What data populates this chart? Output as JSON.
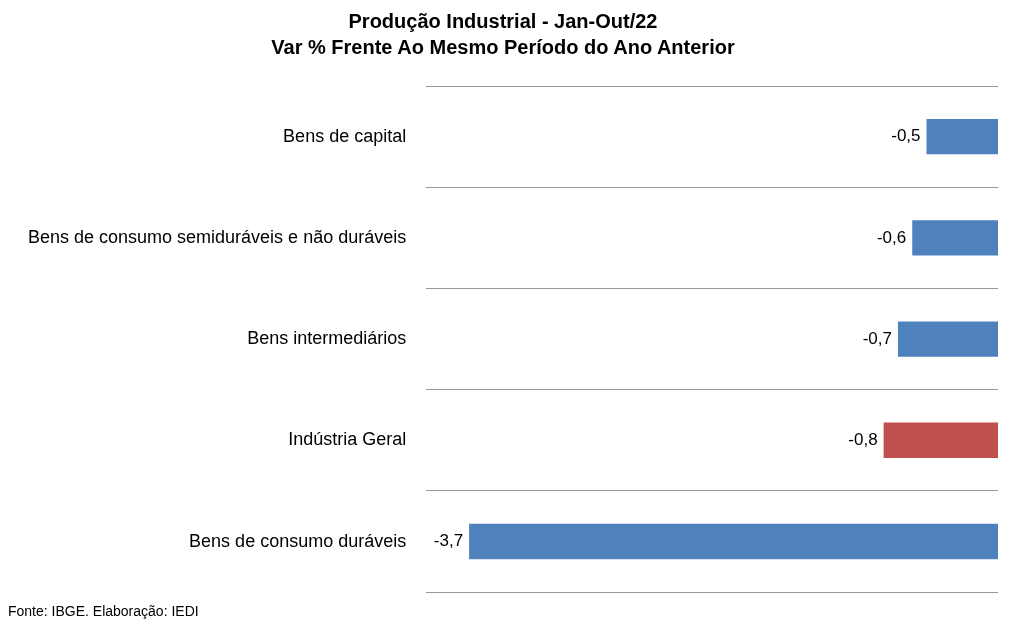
{
  "chart_data": {
    "type": "bar",
    "orientation": "horizontal",
    "title": "Produção Industrial - Jan-Out/22",
    "subtitle": "Var % Frente Ao Mesmo Período do Ano Anterior",
    "categories": [
      "Bens de capital",
      "Bens de consumo semiduráveis e não duráveis",
      "Bens intermediários",
      "Indústria Geral",
      "Bens de consumo duráveis"
    ],
    "values": [
      -0.5,
      -0.6,
      -0.7,
      -0.8,
      -3.7
    ],
    "colors": [
      "#4f81bd",
      "#4f81bd",
      "#4f81bd",
      "#c0504d",
      "#4f81bd"
    ],
    "value_labels": [
      "-0,5",
      "-0,6",
      "-0,7",
      "-0,8",
      "-3,7"
    ],
    "grid": "y",
    "annotations": [
      "Fonte: IBGE. Elaboração: IEDI"
    ]
  }
}
